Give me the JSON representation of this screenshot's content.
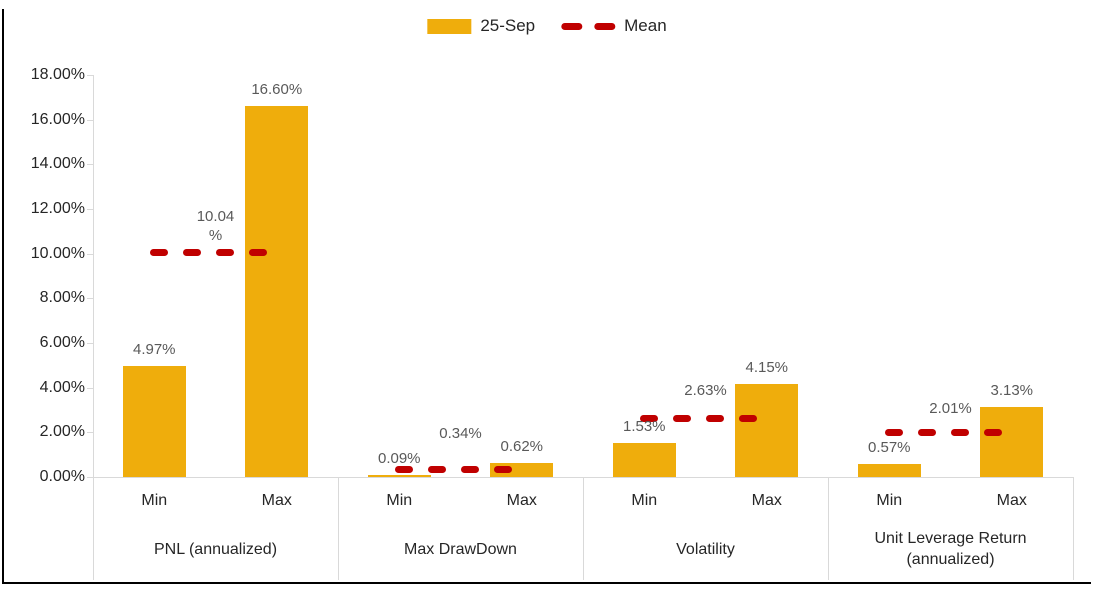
{
  "chart_data": {
    "type": "bar",
    "title": "",
    "legend_position": "top-center",
    "legend": [
      {
        "name": "25-Sep",
        "swatch": "bar",
        "color": "#EFAD0C"
      },
      {
        "name": "Mean",
        "swatch": "dashed-line",
        "color": "#C00000"
      }
    ],
    "categories": [
      "PNL (annualized)",
      "Max DrawDown",
      "Volatility",
      "Unit Leverage Return (annualized)"
    ],
    "sub_categories": [
      "Min",
      "Max"
    ],
    "series": [
      {
        "name": "25-Sep",
        "type": "bar",
        "color": "#EFAD0C",
        "values": [
          [
            4.97,
            16.6
          ],
          [
            0.09,
            0.62
          ],
          [
            1.53,
            4.15
          ],
          [
            0.57,
            3.13
          ]
        ]
      },
      {
        "name": "Mean",
        "type": "dashed-line",
        "color": "#C00000",
        "values": [
          10.04,
          0.34,
          2.63,
          2.01
        ]
      }
    ],
    "data_labels": {
      "bar": [
        [
          "4.97%",
          "16.60%"
        ],
        [
          "0.09%",
          "0.62%"
        ],
        [
          "1.53%",
          "4.15%"
        ],
        [
          "0.57%",
          "3.13%"
        ]
      ],
      "mean": [
        "10.04%",
        "0.34%",
        "2.63%",
        "2.01%"
      ]
    },
    "ylim": [
      0,
      18
    ],
    "ytick_step": 2,
    "ytick_labels": [
      "0.00%",
      "2.00%",
      "4.00%",
      "6.00%",
      "8.00%",
      "10.00%",
      "12.00%",
      "14.00%",
      "16.00%",
      "18.00%"
    ],
    "grid": false,
    "axis_color": "#D9D9D9",
    "data_label_color": "#595959",
    "text_color": "#262626"
  }
}
